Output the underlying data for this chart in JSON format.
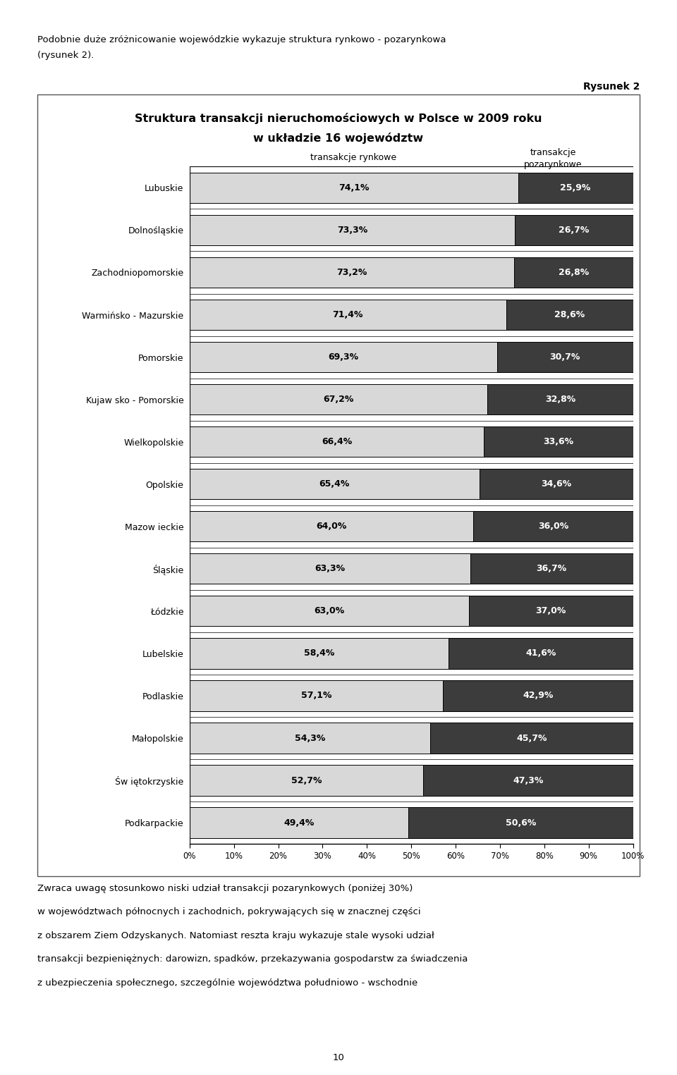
{
  "title_line1": "Struktura transakcji nieruchomościowych w Polsce w 2009 roku",
  "title_line2": "w układzie 16 województw",
  "header_rynkowe": "transakcje rynkowe",
  "header_pozarynkowe": "transakcje\npozarynkowe",
  "rysunek_label": "Rysunek 2",
  "categories": [
    "Lubuskie",
    "Dolnośląskie",
    "Zachodniopomorskie",
    "Warmińsko - Mazurskie",
    "Pomorskie",
    "Kujaw sko - Pomorskie",
    "Wielkopolskie",
    "Opolskie",
    "Mazow ieckie",
    "Śląskie",
    "Łódzkie",
    "Lubelskie",
    "Podlaskie",
    "Małopolskie",
    "Św iętokrzyskie",
    "Podkarpackie"
  ],
  "rynkowe": [
    74.1,
    73.3,
    73.2,
    71.4,
    69.3,
    67.2,
    66.4,
    65.4,
    64.0,
    63.3,
    63.0,
    58.4,
    57.1,
    54.3,
    52.7,
    49.4
  ],
  "pozarynkowe": [
    25.9,
    26.7,
    26.8,
    28.6,
    30.7,
    32.8,
    33.6,
    34.6,
    36.0,
    36.7,
    37.0,
    41.6,
    42.9,
    45.7,
    47.3,
    50.6
  ],
  "rynkowe_labels": [
    "74,1%",
    "73,3%",
    "73,2%",
    "71,4%",
    "69,3%",
    "67,2%",
    "66,4%",
    "65,4%",
    "64,0%",
    "63,3%",
    "63,0%",
    "58,4%",
    "57,1%",
    "54,3%",
    "52,7%",
    "49,4%"
  ],
  "pozarynkowe_labels": [
    "25,9%",
    "26,7%",
    "26,8%",
    "28,6%",
    "30,7%",
    "32,8%",
    "33,6%",
    "34,6%",
    "36,0%",
    "36,7%",
    "37,0%",
    "41,6%",
    "42,9%",
    "45,7%",
    "47,3%",
    "50,6%"
  ],
  "color_rynkowe": "#d8d8d8",
  "color_pozarynkowe": "#3c3c3c",
  "bar_edge_color": "#000000",
  "bar_height": 0.72,
  "xticks": [
    0,
    10,
    20,
    30,
    40,
    50,
    60,
    70,
    80,
    90,
    100
  ],
  "xtick_labels": [
    "0%",
    "10%",
    "20%",
    "30%",
    "40%",
    "50%",
    "60%",
    "70%",
    "80%",
    "90%",
    "100%"
  ],
  "label_fontsize": 9.0,
  "ytick_fontsize": 9.0,
  "xtick_fontsize": 8.5,
  "title_fontsize": 11.5,
  "header_fontsize": 9.0,
  "rysunek_fontsize": 10,
  "background_color": "#ffffff",
  "top_text1": "Podobnie duże zróżnicowanie wojewódzkie wykazuje struktura rynkowo - pozarynkowa",
  "top_text2": "(rysunek 2).",
  "bottom_text1": "Zwraca uwagę stosunkowo niski udział transakcji pozarynkowych (poniżej 30%)",
  "bottom_text2": "w województwach północnych i zachodnich, pokrywających się w znacznej części",
  "bottom_text3": "z obszarem Ziem Odzyskanych. Natomiast reszta kraju wykazuje stale wysoki udział",
  "bottom_text4": "transakcji bezpieniężnych: darowizn, spadków, przekazywania gospodarstw za świadczenia",
  "bottom_text5": "z ubezpieczenia społecznego, szczególnie województwa południowo - wschodnie",
  "page_number": "10"
}
